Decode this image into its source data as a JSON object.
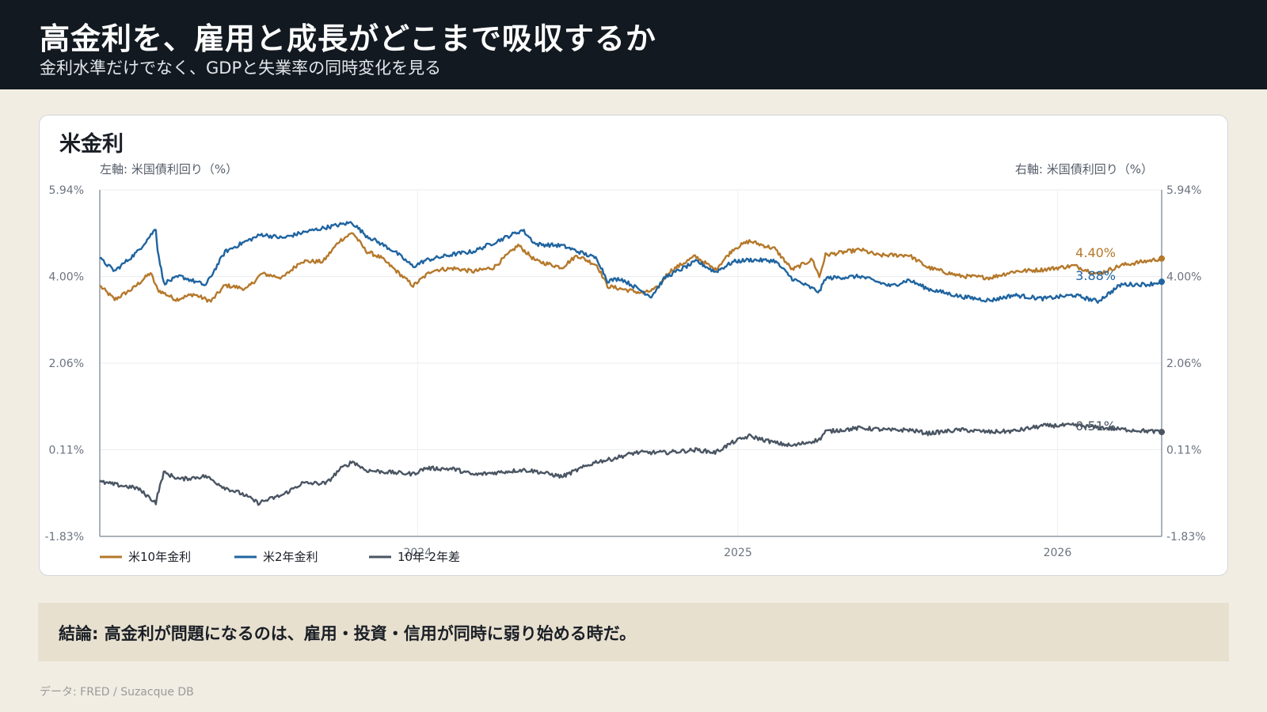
{
  "header": {
    "title": "高金利を、雇用と成長がどこまで吸収するか",
    "subtitle": "金利水準だけでなく、GDPと失業率の同時変化を見る"
  },
  "card": {
    "title": "米金利"
  },
  "conclusion": "結論: 高金利が問題になるのは、雇用・投資・信用が同時に弱り始める時だ。",
  "source": "データ: FRED / Suzacque DB",
  "chart_data": {
    "type": "line",
    "left_axis_label": "左軸: 米国債利回り（%）",
    "right_axis_label": "右軸: 米国債利回り（%）",
    "y_ticks": [
      "5.94%",
      "4.00%",
      "2.06%",
      "0.11%",
      "-1.83%"
    ],
    "ylim": [
      -1.83,
      5.94
    ],
    "xlim": [
      "2023-01-03",
      "2026-04-30"
    ],
    "x_ticks": [
      {
        "label": "2024",
        "date": "2024-01-01"
      },
      {
        "label": "2025",
        "date": "2025-01-01"
      },
      {
        "label": "2026",
        "date": "2026-01-01"
      }
    ],
    "grid": true,
    "legend_position": "bottom-left",
    "series": [
      {
        "name": "米10年金利",
        "color": "#b5782a",
        "end_label": "4.40%",
        "points": [
          [
            "2023-01-03",
            3.79
          ],
          [
            "2023-01-20",
            3.48
          ],
          [
            "2023-02-10",
            3.73
          ],
          [
            "2023-03-02",
            4.08
          ],
          [
            "2023-03-10",
            3.7
          ],
          [
            "2023-03-31",
            3.48
          ],
          [
            "2023-04-20",
            3.6
          ],
          [
            "2023-05-10",
            3.44
          ],
          [
            "2023-05-26",
            3.8
          ],
          [
            "2023-06-20",
            3.72
          ],
          [
            "2023-07-07",
            4.06
          ],
          [
            "2023-07-31",
            3.97
          ],
          [
            "2023-08-21",
            4.34
          ],
          [
            "2023-09-15",
            4.33
          ],
          [
            "2023-10-04",
            4.8
          ],
          [
            "2023-10-19",
            4.98
          ],
          [
            "2023-11-03",
            4.57
          ],
          [
            "2023-11-20",
            4.42
          ],
          [
            "2023-12-05",
            4.17
          ],
          [
            "2023-12-27",
            3.79
          ],
          [
            "2024-01-18",
            4.14
          ],
          [
            "2024-02-12",
            4.18
          ],
          [
            "2024-03-05",
            4.11
          ],
          [
            "2024-03-28",
            4.2
          ],
          [
            "2024-04-25",
            4.7
          ],
          [
            "2024-05-15",
            4.35
          ],
          [
            "2024-06-14",
            4.2
          ],
          [
            "2024-07-01",
            4.47
          ],
          [
            "2024-07-24",
            4.25
          ],
          [
            "2024-08-05",
            3.78
          ],
          [
            "2024-09-16",
            3.62
          ],
          [
            "2024-10-01",
            3.74
          ],
          [
            "2024-10-14",
            4.1
          ],
          [
            "2024-11-13",
            4.45
          ],
          [
            "2024-12-06",
            4.15
          ],
          [
            "2024-12-27",
            4.62
          ],
          [
            "2025-01-14",
            4.79
          ],
          [
            "2025-02-12",
            4.62
          ],
          [
            "2025-03-04",
            4.15
          ],
          [
            "2025-03-27",
            4.38
          ],
          [
            "2025-04-04",
            3.99
          ],
          [
            "2025-04-11",
            4.48
          ],
          [
            "2025-05-21",
            4.6
          ],
          [
            "2025-06-10",
            4.47
          ],
          [
            "2025-07-15",
            4.48
          ],
          [
            "2025-08-06",
            4.2
          ],
          [
            "2025-09-11",
            4.01
          ],
          [
            "2025-10-16",
            3.97
          ],
          [
            "2025-11-12",
            4.11
          ],
          [
            "2025-12-15",
            4.15
          ],
          [
            "2026-01-20",
            4.24
          ],
          [
            "2026-02-16",
            4.05
          ],
          [
            "2026-03-15",
            4.25
          ],
          [
            "2026-04-15",
            4.35
          ],
          [
            "2026-04-30",
            4.4
          ]
        ]
      },
      {
        "name": "米2年金利",
        "color": "#1f64a0",
        "end_label": "3.88%",
        "points": [
          [
            "2023-01-03",
            4.4
          ],
          [
            "2023-01-20",
            4.12
          ],
          [
            "2023-02-15",
            4.55
          ],
          [
            "2023-03-08",
            5.07
          ],
          [
            "2023-03-10",
            4.6
          ],
          [
            "2023-03-17",
            3.85
          ],
          [
            "2023-04-05",
            4.0
          ],
          [
            "2023-05-04",
            3.8
          ],
          [
            "2023-05-26",
            4.55
          ],
          [
            "2023-06-15",
            4.75
          ],
          [
            "2023-07-07",
            4.94
          ],
          [
            "2023-07-31",
            4.86
          ],
          [
            "2023-08-22",
            4.98
          ],
          [
            "2023-09-19",
            5.1
          ],
          [
            "2023-10-18",
            5.21
          ],
          [
            "2023-11-03",
            4.92
          ],
          [
            "2023-12-05",
            4.57
          ],
          [
            "2023-12-27",
            4.22
          ],
          [
            "2024-01-10",
            4.36
          ],
          [
            "2024-02-12",
            4.5
          ],
          [
            "2024-03-05",
            4.56
          ],
          [
            "2024-04-30",
            5.04
          ],
          [
            "2024-05-15",
            4.72
          ],
          [
            "2024-06-14",
            4.69
          ],
          [
            "2024-07-24",
            4.4
          ],
          [
            "2024-08-05",
            3.9
          ],
          [
            "2024-08-20",
            3.95
          ],
          [
            "2024-09-24",
            3.55
          ],
          [
            "2024-10-10",
            3.98
          ],
          [
            "2024-11-15",
            4.34
          ],
          [
            "2024-12-06",
            4.1
          ],
          [
            "2024-12-27",
            4.33
          ],
          [
            "2025-01-14",
            4.37
          ],
          [
            "2025-02-12",
            4.35
          ],
          [
            "2025-03-04",
            3.95
          ],
          [
            "2025-04-04",
            3.65
          ],
          [
            "2025-04-11",
            3.96
          ],
          [
            "2025-05-21",
            4.0
          ],
          [
            "2025-06-25",
            3.78
          ],
          [
            "2025-07-15",
            3.92
          ],
          [
            "2025-08-06",
            3.72
          ],
          [
            "2025-09-12",
            3.55
          ],
          [
            "2025-10-16",
            3.46
          ],
          [
            "2025-11-12",
            3.58
          ],
          [
            "2025-12-15",
            3.5
          ],
          [
            "2026-01-20",
            3.58
          ],
          [
            "2026-02-16",
            3.44
          ],
          [
            "2026-03-15",
            3.82
          ],
          [
            "2026-04-15",
            3.82
          ],
          [
            "2026-04-30",
            3.88
          ]
        ]
      },
      {
        "name": "10年-2年差",
        "color": "#4a5563",
        "end_label": "0.51%",
        "points": [
          [
            "2023-01-03",
            -0.61
          ],
          [
            "2023-02-15",
            -0.75
          ],
          [
            "2023-03-08",
            -1.07
          ],
          [
            "2023-03-10",
            -0.9
          ],
          [
            "2023-03-17",
            -0.4
          ],
          [
            "2023-04-05",
            -0.55
          ],
          [
            "2023-05-04",
            -0.48
          ],
          [
            "2023-05-26",
            -0.74
          ],
          [
            "2023-06-15",
            -0.88
          ],
          [
            "2023-07-03",
            -1.08
          ],
          [
            "2023-07-31",
            -0.9
          ],
          [
            "2023-08-22",
            -0.64
          ],
          [
            "2023-09-19",
            -0.64
          ],
          [
            "2023-10-04",
            -0.33
          ],
          [
            "2023-10-19",
            -0.15
          ],
          [
            "2023-11-03",
            -0.35
          ],
          [
            "2023-12-05",
            -0.4
          ],
          [
            "2023-12-27",
            -0.43
          ],
          [
            "2024-01-10",
            -0.3
          ],
          [
            "2024-02-12",
            -0.32
          ],
          [
            "2024-03-05",
            -0.45
          ],
          [
            "2024-04-30",
            -0.34
          ],
          [
            "2024-05-15",
            -0.37
          ],
          [
            "2024-06-14",
            -0.49
          ],
          [
            "2024-07-24",
            -0.15
          ],
          [
            "2024-08-05",
            -0.12
          ],
          [
            "2024-09-06",
            0.05
          ],
          [
            "2024-10-10",
            0.05
          ],
          [
            "2024-11-15",
            0.11
          ],
          [
            "2024-12-06",
            0.05
          ],
          [
            "2024-12-27",
            0.29
          ],
          [
            "2025-01-14",
            0.42
          ],
          [
            "2025-02-12",
            0.27
          ],
          [
            "2025-03-04",
            0.2
          ],
          [
            "2025-04-04",
            0.34
          ],
          [
            "2025-04-11",
            0.52
          ],
          [
            "2025-05-21",
            0.6
          ],
          [
            "2025-06-25",
            0.55
          ],
          [
            "2025-07-15",
            0.56
          ],
          [
            "2025-08-06",
            0.48
          ],
          [
            "2025-09-12",
            0.56
          ],
          [
            "2025-10-16",
            0.51
          ],
          [
            "2025-11-12",
            0.53
          ],
          [
            "2025-12-15",
            0.65
          ],
          [
            "2026-01-20",
            0.66
          ],
          [
            "2026-02-16",
            0.61
          ],
          [
            "2026-03-15",
            0.57
          ],
          [
            "2026-04-15",
            0.53
          ],
          [
            "2026-04-30",
            0.51
          ]
        ]
      }
    ]
  }
}
